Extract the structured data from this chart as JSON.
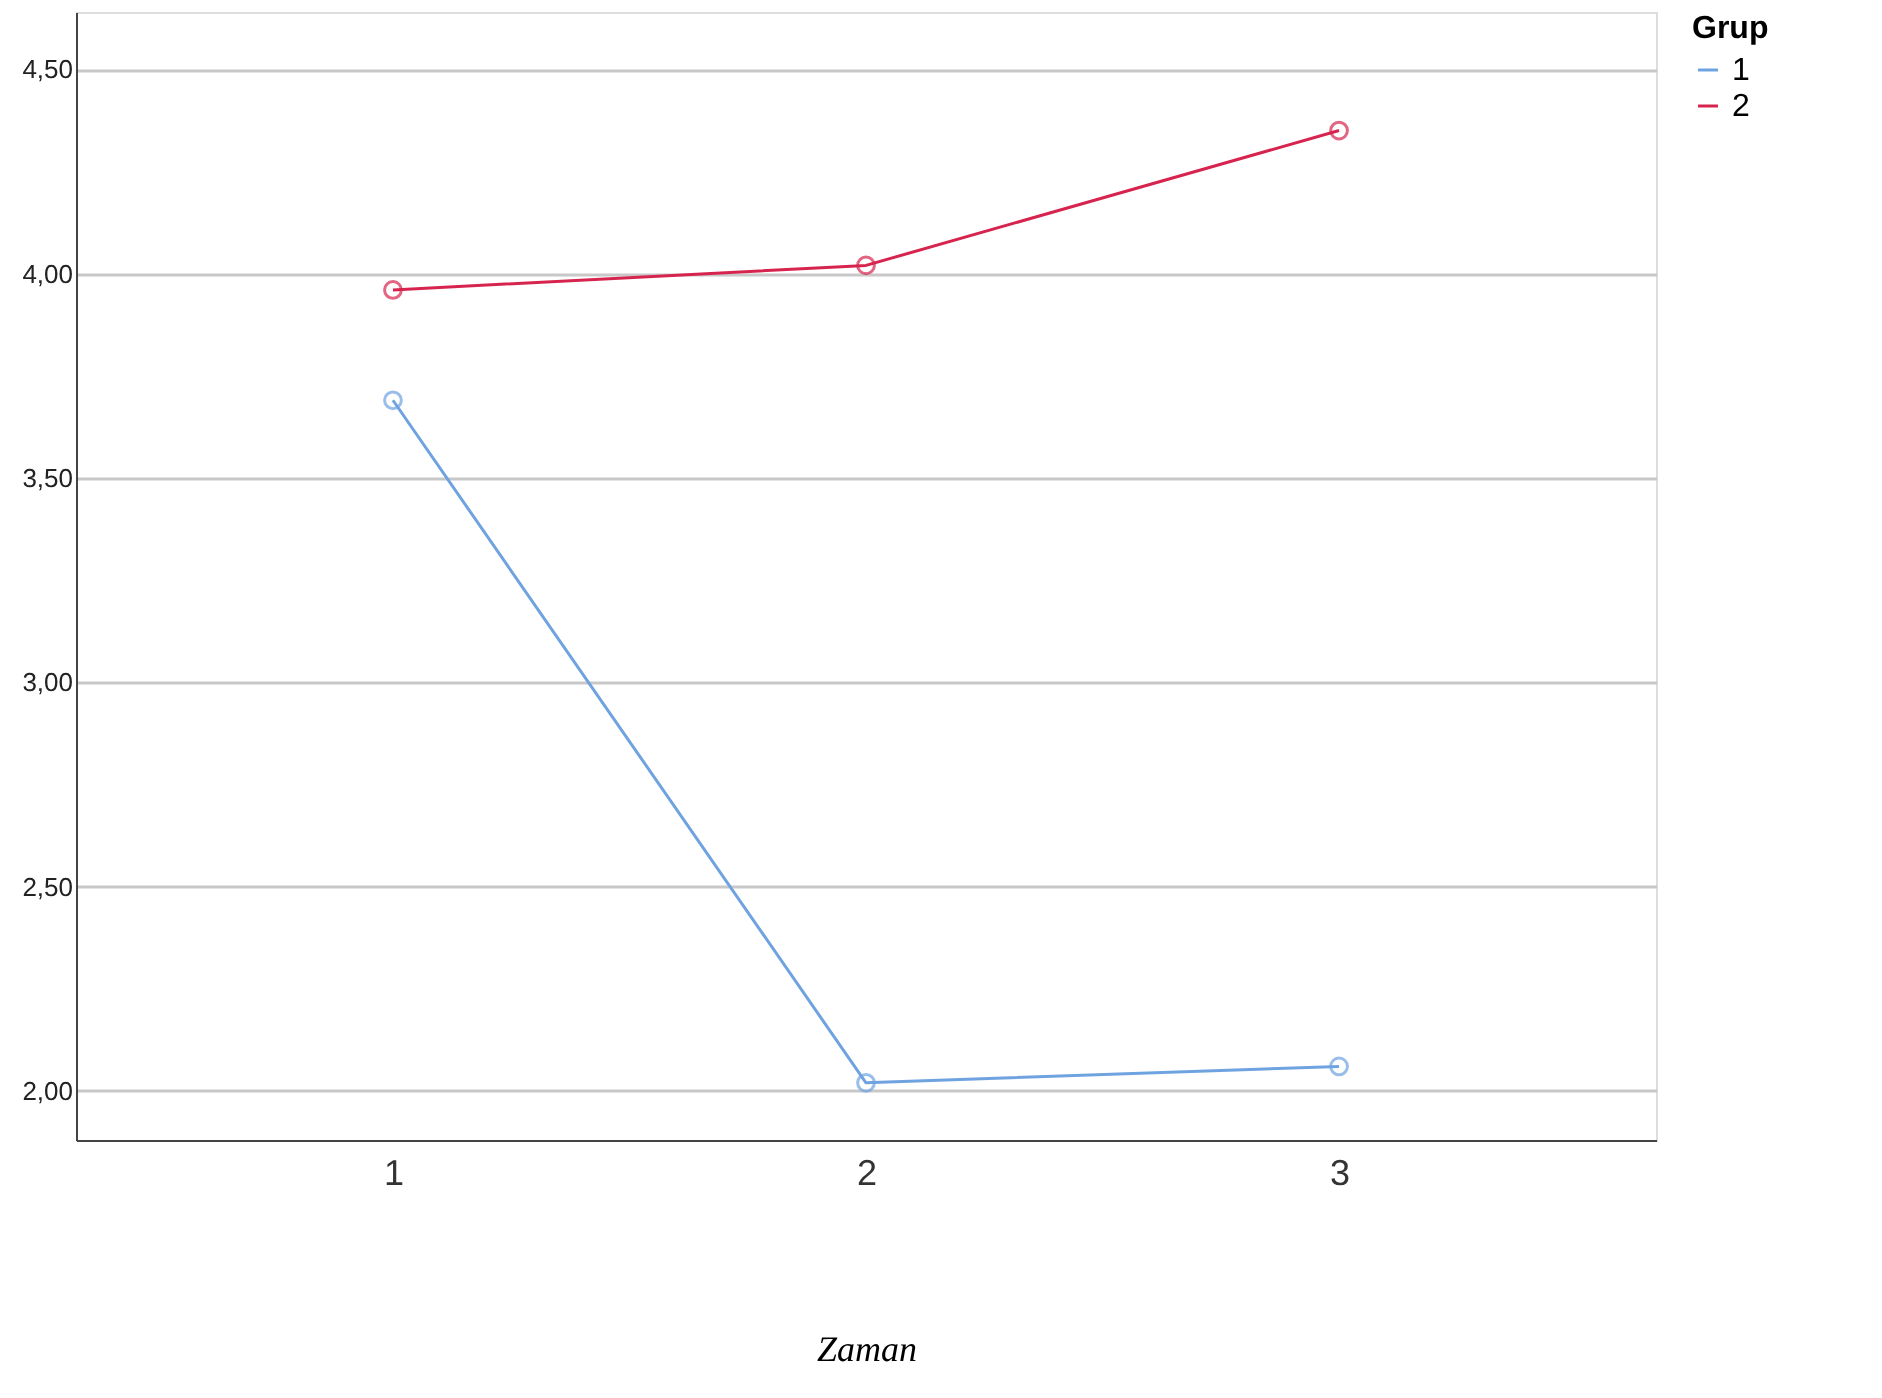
{
  "chart_data": {
    "type": "line",
    "xlabel": "Zaman",
    "legend_title": "Grup",
    "legend": "top right",
    "categories": [
      "1",
      "2",
      "3"
    ],
    "series": [
      {
        "name": "1",
        "color": "#6fa3e0",
        "values": [
          3.69,
          2.02,
          2.06
        ]
      },
      {
        "name": "2",
        "color": "#d6244e",
        "values": [
          3.96,
          4.02,
          4.35
        ]
      }
    ],
    "ylim": [
      1.88,
      4.64
    ],
    "yticks": [
      {
        "value": 2.0,
        "label": "2,00"
      },
      {
        "value": 2.5,
        "label": "2,50"
      },
      {
        "value": 3.0,
        "label": "3,00"
      },
      {
        "value": 3.5,
        "label": "3,50"
      },
      {
        "value": 4.0,
        "label": "4,00"
      },
      {
        "value": 4.5,
        "label": "4,50"
      }
    ],
    "grid": "y",
    "marker": "circle",
    "line_style": "solid"
  }
}
